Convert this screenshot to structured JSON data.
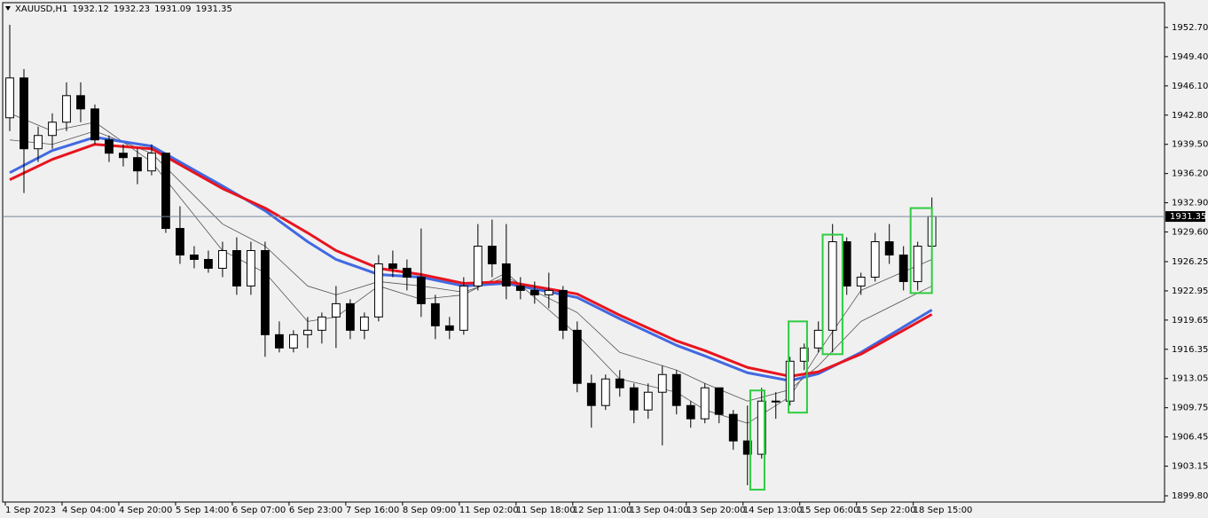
{
  "chart_data": {
    "type": "candlestick",
    "symbol": "XAUUSD,H1",
    "quote": [
      1932.12,
      1932.23,
      1931.09,
      1931.35
    ],
    "ylim": [
      1899.1,
      1955.5
    ],
    "yticks": [
      {
        "value": 1952.7,
        "label": "1952.70"
      },
      {
        "value": 1949.4,
        "label": "1949.40"
      },
      {
        "value": 1946.1,
        "label": "1946.10"
      },
      {
        "value": 1942.8,
        "label": "1942.80"
      },
      {
        "value": 1939.5,
        "label": "1939.50"
      },
      {
        "value": 1936.2,
        "label": "1936.20"
      },
      {
        "value": 1932.9,
        "label": "1932.90"
      },
      {
        "value": 1929.6,
        "label": "1929.60"
      },
      1926.25,
      1922.95,
      {
        "value": 1919.65,
        "label": "1919.65"
      },
      1916.35,
      1913.05,
      1909.75,
      1906.45,
      1903.15,
      {
        "value": 1899.8,
        "label": "1899.80"
      }
    ],
    "xlim": [
      -0.5,
      81.4
    ],
    "xticks": [
      {
        "value": 0,
        "label": "1 Sep 2023"
      },
      {
        "value": 4,
        "label": "4 Sep 04:00"
      },
      {
        "value": 8,
        "label": "4 Sep 20:00"
      },
      {
        "value": 12,
        "label": "5 Sep 14:00"
      },
      {
        "value": 16,
        "label": "6 Sep 07:00"
      },
      {
        "value": 20,
        "label": "6 Sep 23:00"
      },
      {
        "value": 24,
        "label": "7 Sep 16:00"
      },
      {
        "value": 28,
        "label": "8 Sep 09:00"
      },
      {
        "value": 32,
        "label": "11 Sep 02:00"
      },
      {
        "value": 36,
        "label": "11 Sep 18:00"
      },
      {
        "value": 40,
        "label": "12 Sep 11:00"
      },
      {
        "value": 44,
        "label": "13 Sep 04:00"
      },
      {
        "value": 48,
        "label": "13 Sep 20:00"
      },
      {
        "value": 52,
        "label": "14 Sep 13:00"
      },
      {
        "value": 56,
        "label": "15 Sep 06:00"
      },
      {
        "value": 60,
        "label": "15 Sep 22:00"
      },
      {
        "value": 64,
        "label": "18 Sep 15:00"
      }
    ],
    "ohlc": [
      [
        1942.5,
        1953,
        1941,
        1947
      ],
      [
        1947,
        1948,
        1934,
        1939
      ],
      [
        1939,
        1941.5,
        1937.5,
        1940.5
      ],
      [
        1940.5,
        1943,
        1939,
        1942
      ],
      [
        1942,
        1946.5,
        1941,
        1945
      ],
      [
        1945,
        1946.5,
        1942,
        1943.5
      ],
      [
        1943.5,
        1944,
        1939.5,
        1940
      ],
      [
        1940,
        1940.5,
        1937.5,
        1938.5
      ],
      [
        1938.5,
        1939.5,
        1937,
        1938
      ],
      [
        1938,
        1939,
        1935,
        1936.5
      ],
      [
        1936.5,
        1939.5,
        1936,
        1938.5
      ],
      [
        1938.5,
        1938.5,
        1929.5,
        1930
      ],
      [
        1930,
        1932.5,
        1926,
        1927
      ],
      [
        1927,
        1928,
        1925.5,
        1926.5
      ],
      [
        1926.5,
        1927.5,
        1925,
        1925.5
      ],
      [
        1925.5,
        1928.5,
        1924.5,
        1927.5
      ],
      [
        1927.5,
        1929,
        1922.5,
        1923.5
      ],
      [
        1923.5,
        1928.5,
        1922.5,
        1927.5
      ],
      [
        1927.5,
        1928.5,
        1915.5,
        1918
      ],
      [
        1918,
        1919.5,
        1916,
        1916.5
      ],
      [
        1916.5,
        1918.5,
        1916,
        1918
      ],
      [
        1918,
        1920,
        1916.5,
        1918.5
      ],
      [
        1918.5,
        1920.5,
        1917,
        1920
      ],
      [
        1920,
        1923.5,
        1916.5,
        1921.5
      ],
      [
        1921.5,
        1922,
        1917.5,
        1918.5
      ],
      [
        1918.5,
        1920.5,
        1917.5,
        1920
      ],
      [
        1920,
        1927,
        1919.5,
        1926
      ],
      [
        1926,
        1927.5,
        1924.5,
        1925.5
      ],
      [
        1925.5,
        1926.5,
        1923,
        1924.5
      ],
      [
        1924.5,
        1930,
        1920,
        1921.5
      ],
      [
        1921.5,
        1922.5,
        1917.5,
        1919
      ],
      [
        1919,
        1920,
        1917.5,
        1918.5
      ],
      [
        1918.5,
        1924.5,
        1918,
        1923.5
      ],
      [
        1923.5,
        1930.5,
        1923,
        1928
      ],
      [
        1928,
        1931,
        1924.5,
        1926
      ],
      [
        1926,
        1930.5,
        1922,
        1923.5
      ],
      [
        1923.5,
        1924.5,
        1922,
        1923
      ],
      [
        1923,
        1924,
        1921.5,
        1922.5
      ],
      [
        1922.5,
        1925,
        1921,
        1923
      ],
      [
        1923,
        1923.5,
        1917.5,
        1918.5
      ],
      [
        1918.5,
        1919.5,
        1911.5,
        1912.5
      ],
      [
        1912.5,
        1913.5,
        1907.5,
        1910
      ],
      [
        1910,
        1913.5,
        1909.5,
        1913
      ],
      [
        1913,
        1914,
        1911,
        1912
      ],
      [
        1912,
        1912.5,
        1908,
        1909.5
      ],
      [
        1909.5,
        1912.5,
        1908.5,
        1911.5
      ],
      [
        1911.5,
        1914.5,
        1905.5,
        1913.5
      ],
      [
        1913.5,
        1914,
        1909,
        1910
      ],
      [
        1910,
        1910.5,
        1907.5,
        1908.5
      ],
      [
        1908.5,
        1912.5,
        1908,
        1912
      ],
      [
        1912,
        1912,
        1908,
        1909
      ],
      [
        1909,
        1909.5,
        1905,
        1906
      ],
      [
        1906,
        1910,
        1901,
        1904.5
      ],
      [
        1904.5,
        1912,
        1904,
        1910.5
      ],
      [
        1910.5,
        1911.5,
        1908.5,
        1910.5
      ],
      [
        1910.5,
        1915.5,
        1910,
        1915
      ],
      [
        1915,
        1917,
        1914,
        1916.5
      ],
      [
        1916.5,
        1919.5,
        1916,
        1918.5
      ],
      [
        1918.5,
        1930.5,
        1916,
        1928.5
      ],
      [
        1928.5,
        1929,
        1922.5,
        1923.5
      ],
      [
        1923.5,
        1925,
        1922.5,
        1924.5
      ],
      [
        1924.5,
        1929.5,
        1924,
        1928.5
      ],
      [
        1928.5,
        1930.5,
        1926,
        1927
      ],
      [
        1927,
        1928,
        1923,
        1924
      ],
      [
        1924,
        1928.5,
        1923,
        1928
      ],
      [
        1928,
        1933.5,
        1927.5,
        1931.35
      ]
    ],
    "lines": [
      {
        "color": "#555555",
        "width": 0.8,
        "x": [
          0,
          3,
          6,
          10,
          15,
          18,
          21,
          23,
          26,
          29,
          32,
          35,
          40,
          43,
          47,
          49,
          52,
          55,
          57,
          60,
          65
        ],
        "values": [
          1943,
          1941,
          1942,
          1937.5,
          1927.5,
          1925,
          1919.5,
          1920,
          1923.5,
          1922,
          1922.5,
          1925,
          1918,
          1913,
          1911.5,
          1909.5,
          1908,
          1911,
          1916,
          1923,
          1926.5
        ]
      },
      {
        "color": "#555555",
        "width": 0.8,
        "x": [
          0,
          3,
          6,
          10,
          15,
          18,
          21,
          23,
          26,
          29,
          32,
          35,
          40,
          43,
          47,
          49,
          52,
          55,
          57,
          60,
          65
        ],
        "values": [
          1940,
          1939.5,
          1941,
          1938.5,
          1930.5,
          1928,
          1923.5,
          1922.5,
          1924,
          1923.5,
          1922.8,
          1924.5,
          1920.5,
          1916,
          1914,
          1912.5,
          1910.5,
          1911.8,
          1914.5,
          1919.5,
          1923.5
        ]
      },
      {
        "color": "#4169e1",
        "width": 3,
        "x": [
          0,
          3,
          6,
          10,
          15,
          18,
          21,
          23,
          26,
          29,
          32,
          35,
          40,
          43,
          47,
          49,
          52,
          55,
          57,
          60,
          65
        ],
        "values": [
          1936.3,
          1938.8,
          1940.3,
          1939.3,
          1934.8,
          1932,
          1928.5,
          1926.5,
          1924.8,
          1924.5,
          1923.5,
          1923.8,
          1922.2,
          1919.8,
          1916.8,
          1915.6,
          1913.7,
          1912.8,
          1913.6,
          1916,
          1920.8
        ]
      },
      {
        "color": "#e8141e",
        "width": 3,
        "x": [
          0,
          3,
          6,
          10,
          15,
          18,
          21,
          23,
          26,
          29,
          32,
          35,
          40,
          43,
          47,
          49,
          52,
          55,
          57,
          60,
          65
        ],
        "values": [
          1935.5,
          1937.8,
          1939.5,
          1939,
          1934.5,
          1932.3,
          1929.5,
          1927.5,
          1925.5,
          1924.8,
          1923.8,
          1924,
          1922.6,
          1920.2,
          1917.3,
          1916.2,
          1914.3,
          1913.3,
          1913.8,
          1915.8,
          1920.3
        ]
      }
    ],
    "highlights": [
      {
        "x": [
          52.2,
          53.2
        ],
        "y": [
          1900.5,
          1911.7
        ]
      },
      {
        "x": [
          54.9,
          56.2
        ],
        "y": [
          1909.2,
          1919.5
        ]
      },
      {
        "x": [
          57.3,
          58.7
        ],
        "y": [
          1915.8,
          1929.3
        ]
      },
      {
        "x": [
          63.5,
          65.0
        ],
        "y": [
          1922.7,
          1932.3
        ]
      }
    ],
    "highlight_color": "#2ecc40",
    "up_color": "#ffffff",
    "down_color": "#000000"
  }
}
